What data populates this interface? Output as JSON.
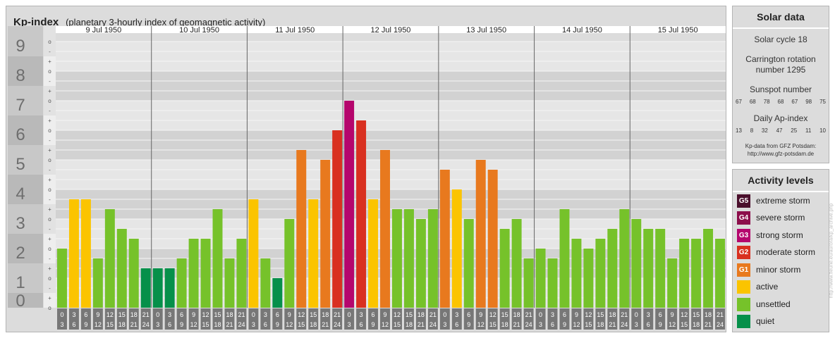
{
  "header": {
    "title": "Kp-index",
    "subtitle": "(planetary 3-hourly index of geomagnetic activity)"
  },
  "chart_data": {
    "type": "bar",
    "title": "Kp-index",
    "subtitle": "(planetary 3-hourly index of geomagnetic activity)",
    "ylim": [
      0,
      9
    ],
    "y_ticks": [
      "0",
      "1",
      "2",
      "3",
      "4",
      "5",
      "6",
      "7",
      "8",
      "9"
    ],
    "y_minor_labels": [
      "o",
      "+",
      "-"
    ],
    "days": [
      "9 Jul 1950",
      "10 Jul 1950",
      "11 Jul 1950",
      "12 Jul 1950",
      "13 Jul 1950",
      "14 Jul 1950",
      "15 Jul 1950"
    ],
    "interval_labels": [
      [
        "0",
        "3"
      ],
      [
        "3",
        "6"
      ],
      [
        "6",
        "9"
      ],
      [
        "9",
        "12"
      ],
      [
        "12",
        "15"
      ],
      [
        "15",
        "18"
      ],
      [
        "18",
        "21"
      ],
      [
        "21",
        "24"
      ]
    ],
    "values": [
      2.0,
      3.667,
      3.667,
      1.667,
      3.333,
      2.667,
      2.333,
      1.333,
      1.333,
      1.333,
      1.667,
      2.333,
      2.333,
      3.333,
      1.667,
      2.333,
      3.667,
      1.667,
      1.0,
      3.0,
      5.333,
      3.667,
      5.0,
      6.0,
      7.0,
      6.333,
      3.667,
      5.333,
      3.333,
      3.333,
      3.0,
      3.333,
      4.667,
      4.0,
      3.0,
      5.0,
      4.667,
      2.667,
      3.0,
      1.667,
      2.0,
      1.667,
      3.333,
      2.333,
      2.0,
      2.333,
      2.667,
      3.333,
      3.0,
      2.667,
      2.667,
      1.667,
      2.333,
      2.333,
      2.667,
      2.333
    ],
    "grid": true,
    "legend": "right"
  },
  "solar": {
    "title": "Solar data",
    "cycle": "Solar cycle 18",
    "carrington": "Carrington rotation number 1295",
    "sunspot_label": "Sunspot number",
    "sunspot_numbers": [
      "67",
      "68",
      "78",
      "68",
      "67",
      "98",
      "75"
    ],
    "ap_label": "Daily Ap-index",
    "ap_numbers": [
      "13",
      "8",
      "32",
      "47",
      "25",
      "11",
      "10"
    ],
    "credit_line1": "Kp-data from GFZ Potsdam:",
    "credit_line2": "http://www.gfz-potsdam.de"
  },
  "activity": {
    "title": "Activity levels",
    "levels": [
      {
        "code": "G5",
        "label": "extreme storm",
        "color": "#4a0f2c"
      },
      {
        "code": "G4",
        "label": "severe storm",
        "color": "#8c0e4b"
      },
      {
        "code": "G3",
        "label": "strong storm",
        "color": "#b5066d"
      },
      {
        "code": "G2",
        "label": "moderate storm",
        "color": "#d93020"
      },
      {
        "code": "G1",
        "label": "minor storm",
        "color": "#e8791e"
      },
      {
        "code": "",
        "label": "active",
        "color": "#fbc400"
      },
      {
        "code": "",
        "label": "unsettled",
        "color": "#76c22a"
      },
      {
        "code": "",
        "label": "quiet",
        "color": "#06904a"
      }
    ]
  },
  "watermark": "http://www.fleurie.eu/aurora/kp_archive.php"
}
